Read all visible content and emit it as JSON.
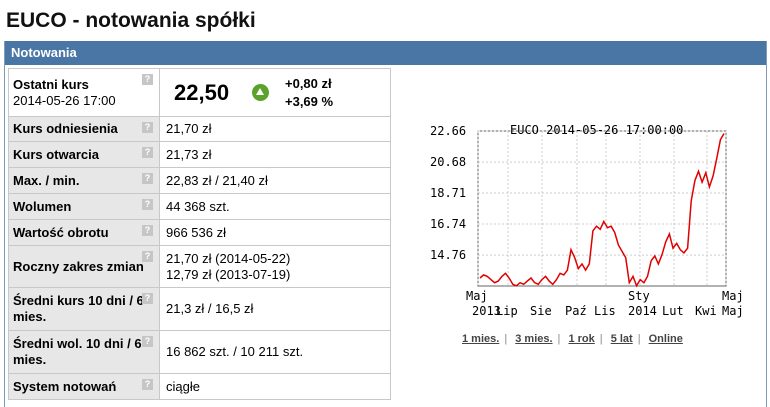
{
  "page": {
    "title": "EUCO - notowania spółki"
  },
  "section": {
    "title": "Notowania"
  },
  "quote": {
    "label": "Ostatni kurs",
    "datetime": "2014-05-26 17:00",
    "price": "22,50",
    "change_abs": "+0,80 zł",
    "change_pct": "+3,69 %",
    "help": "?"
  },
  "rows": [
    {
      "label": "Kurs odniesienia",
      "value": "21,70 zł"
    },
    {
      "label": "Kurs otwarcia",
      "value": "21,73 zł"
    },
    {
      "label": "Max. / min.",
      "value": "22,83 zł / 21,40 zł"
    },
    {
      "label": "Wolumen",
      "value": "44 368 szt."
    },
    {
      "label": "Wartość obrotu",
      "value": "966 536 zł"
    },
    {
      "label": "Roczny zakres zmian",
      "value": "21,70 zł (2014-05-22)",
      "value2": "12,79 zł (2013-07-19)"
    },
    {
      "label": "Średni kurs 10 dni / 6 mies.",
      "value": "21,3 zł / 16,5 zł"
    },
    {
      "label": "Średni wol. 10 dni / 6 mies.",
      "value": "16 862 szt. / 10 211 szt."
    },
    {
      "label": "System notowań",
      "value": "ciągłe"
    }
  ],
  "chart_data": {
    "type": "line",
    "title": "EUCO 2014-05-26 17:00:00",
    "y_ticks": [
      "22.66",
      "20.68",
      "18.71",
      "16.74",
      "14.76"
    ],
    "ylim": [
      12.79,
      22.66
    ],
    "x_ticks_top": [
      "Maj",
      "",
      "",
      "",
      "",
      "Sty",
      "",
      "",
      "",
      "Maj"
    ],
    "x_ticks_bottom": [
      "2013",
      "Lip",
      "Sie",
      "Paź",
      "Lis",
      "2014",
      "Lut",
      "Kwi",
      "",
      "Maj"
    ],
    "grid": true,
    "line_color": "#e00000",
    "series": [
      {
        "values": [
          13.3,
          13.5,
          13.4,
          13.2,
          13.0,
          13.1,
          13.4,
          13.6,
          13.3,
          12.9,
          12.8,
          13.0,
          12.9,
          13.1,
          13.3,
          13.0,
          12.9,
          13.2,
          13.4,
          13.1,
          12.9,
          13.2,
          13.6,
          13.5,
          13.8,
          15.1,
          14.6,
          13.9,
          14.2,
          13.8,
          14.2,
          16.3,
          16.6,
          16.4,
          16.9,
          16.5,
          16.6,
          16.2,
          15.4,
          15.0,
          14.6,
          13.0,
          13.4,
          12.8,
          13.2,
          13.0,
          13.4,
          14.4,
          14.7,
          14.2,
          14.8,
          15.6,
          16.1,
          15.2,
          15.5,
          15.1,
          14.9,
          15.2,
          18.2,
          19.5,
          20.1,
          19.4,
          20.0,
          19.1,
          19.8,
          20.9,
          22.1,
          22.5
        ]
      }
    ]
  },
  "range_links": [
    "1 mies.",
    "3 mies.",
    "1 rok",
    "5 lat",
    "Online"
  ]
}
